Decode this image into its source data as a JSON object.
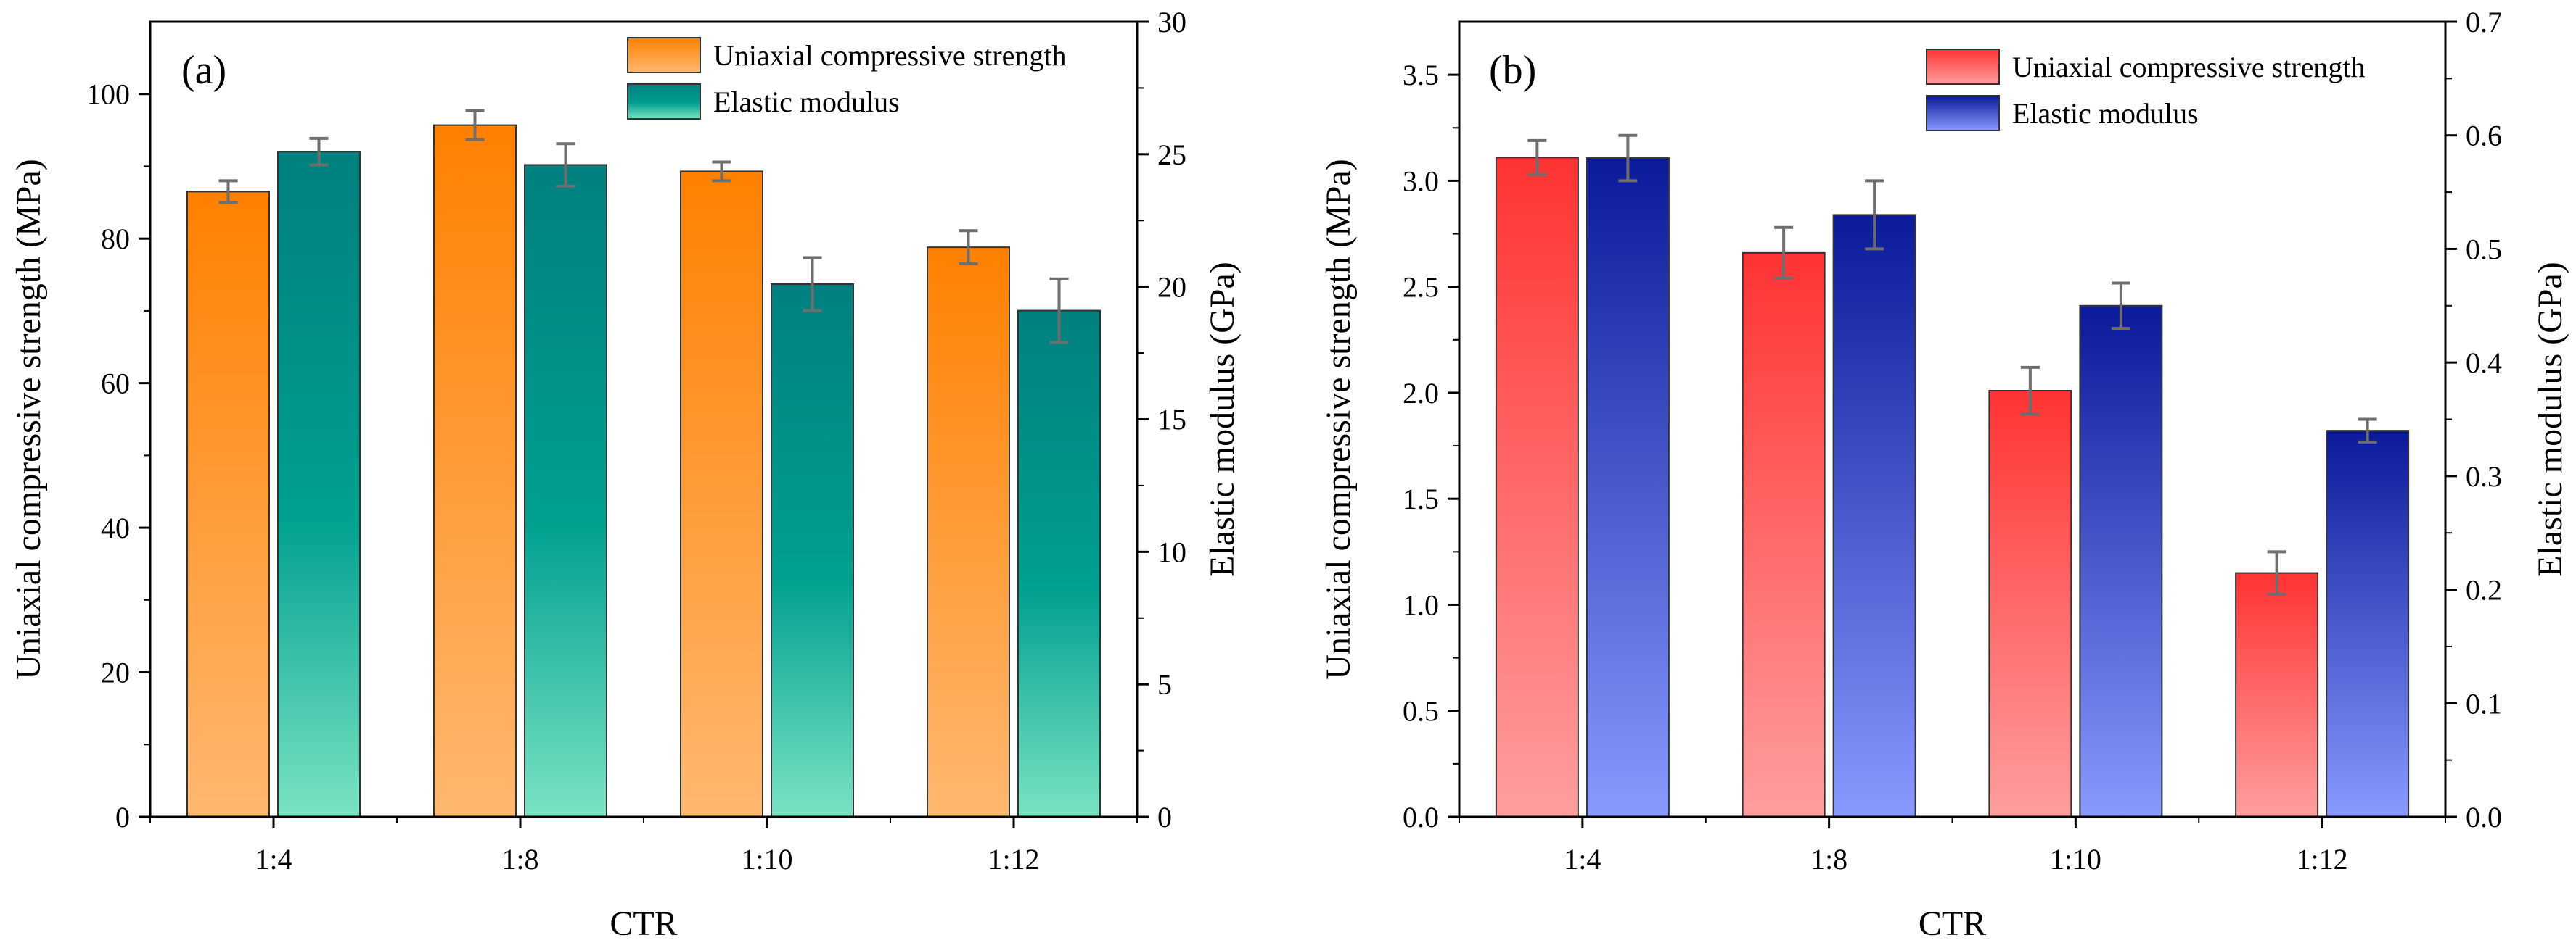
{
  "chart_data": [
    {
      "type": "bar",
      "panel_label": "(a)",
      "xlabel": "CTR",
      "ylabel": "Uniaxial compressive strength (MPa)",
      "y2label": "Elastic modulus (GPa)",
      "categories": [
        "1:4",
        "1:8",
        "1:10",
        "1:12"
      ],
      "ylim": [
        0,
        110
      ],
      "y2lim": [
        0,
        30
      ],
      "yticks": [
        0,
        20,
        40,
        60,
        80,
        100
      ],
      "y2ticks": [
        0,
        5,
        10,
        15,
        20,
        25,
        30
      ],
      "legend_position": "top-right",
      "grid": false,
      "series": [
        {
          "name": "Uniaxial compressive strength",
          "axis": "left",
          "values": [
            86.5,
            95.7,
            89.3,
            78.8
          ],
          "errors": [
            1.5,
            2.0,
            1.3,
            2.3
          ],
          "color_top": "#FF8000",
          "color_bottom": "#FFB870"
        },
        {
          "name": "Elastic modulus",
          "axis": "right",
          "values": [
            25.1,
            24.6,
            20.1,
            19.1
          ],
          "errors": [
            0.5,
            0.8,
            1.0,
            1.2
          ],
          "color_top": "#008080",
          "color_mid": "#00A090",
          "color_bottom": "#7AE3C3"
        }
      ]
    },
    {
      "type": "bar",
      "panel_label": "(b)",
      "xlabel": "CTR",
      "ylabel": "Uniaxial compressive strength (MPa)",
      "y2label": "Elastic modulus (GPa)",
      "categories": [
        "1:4",
        "1:8",
        "1:10",
        "1:12"
      ],
      "ylim": [
        0,
        3.75
      ],
      "y2lim": [
        0,
        0.7
      ],
      "yticks": [
        "0.0",
        "0.5",
        "1.0",
        "1.5",
        "2.0",
        "2.5",
        "3.0",
        "3.5"
      ],
      "y2ticks": [
        "0.0",
        "0.1",
        "0.2",
        "0.3",
        "0.4",
        "0.5",
        "0.6",
        "0.7"
      ],
      "legend_position": "top-right",
      "grid": false,
      "series": [
        {
          "name": "Uniaxial compressive strength",
          "axis": "left",
          "values": [
            3.11,
            2.66,
            2.01,
            1.15
          ],
          "errors": [
            0.08,
            0.12,
            0.11,
            0.1
          ],
          "color_top": "#FF3333",
          "color_bottom": "#FF9E9E"
        },
        {
          "name": "Elastic modulus",
          "axis": "right",
          "values": [
            0.58,
            0.53,
            0.45,
            0.34
          ],
          "errors": [
            0.02,
            0.03,
            0.02,
            0.01
          ],
          "color_top": "#0A1A99",
          "color_bottom": "#8899FF"
        }
      ]
    }
  ]
}
